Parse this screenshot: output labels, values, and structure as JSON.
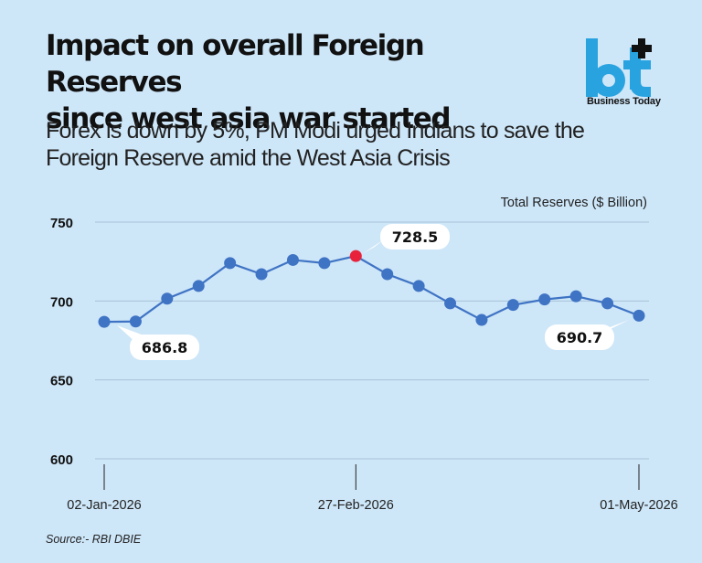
{
  "header": {
    "title_line1": "Impact on overall Foreign Reserves",
    "title_line2": "since west asia war started",
    "subtitle_line1": "Forex is down by 5%, PM Modi urged Indians to save the",
    "subtitle_line2": "Foreign Reserve amid the West Asia Crisis"
  },
  "brand": {
    "name": "Business Today",
    "logo_icon": "bt-logo-icon",
    "color": "#29a3e0"
  },
  "footer": {
    "source": "Source:- RBI DBIE"
  },
  "colors": {
    "background": "#cde6f8",
    "line": "#3f73c4",
    "highlight": "#e8223a"
  },
  "chart_data": {
    "type": "line",
    "ylabel": "Total Reserves ($ Billion)",
    "ylim": [
      600,
      750
    ],
    "yticks": [
      600,
      650,
      700,
      750
    ],
    "grid": true,
    "x_tick_labels": [
      {
        "index": 0,
        "label": "02-Jan-2026"
      },
      {
        "index": 8,
        "label": "27-Feb-2026"
      },
      {
        "index": 17,
        "label": "01-May-2026"
      }
    ],
    "values": [
      686.8,
      687.0,
      701.5,
      709.5,
      724.0,
      717.0,
      726.0,
      724.0,
      728.5,
      717.0,
      709.5,
      698.5,
      688.0,
      697.5,
      701.0,
      703.0,
      698.5,
      690.7
    ],
    "highlight_index": 8,
    "data_labels": [
      {
        "index": 0,
        "text": "686.8"
      },
      {
        "index": 8,
        "text": "728.5"
      },
      {
        "index": 17,
        "text": "690.7"
      }
    ]
  }
}
